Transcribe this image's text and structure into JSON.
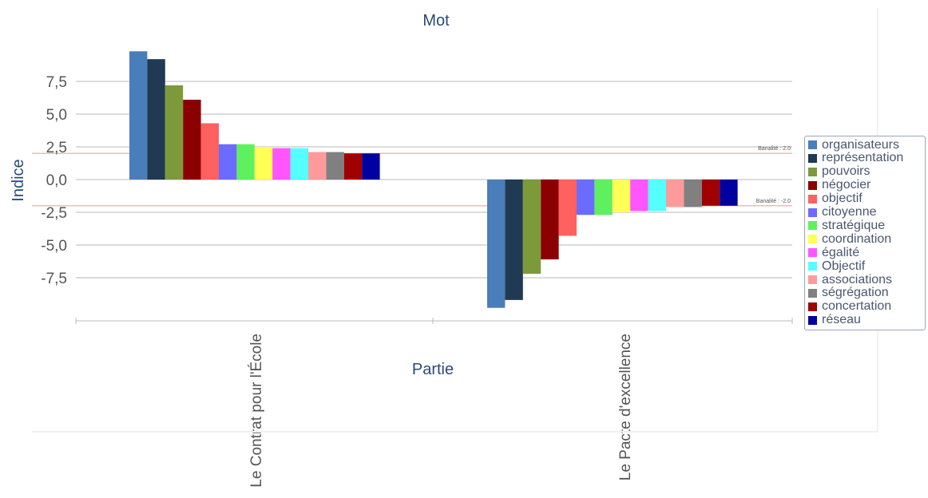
{
  "chart_data": {
    "type": "bar",
    "title": "Mot",
    "xlabel": "Partie",
    "ylabel": "Indice",
    "categories": [
      "Le Contrat pour l'École",
      "Le Pacte d'excellence"
    ],
    "ylim": [
      -10.4,
      10.4
    ],
    "yticks": [
      "7,5",
      "5,0",
      "2,5",
      "0,0",
      "-2,5",
      "-5,0",
      "-7,5"
    ],
    "ytick_values": [
      7.5,
      5.0,
      2.5,
      0.0,
      -2.5,
      -5.0,
      -7.5
    ],
    "grid": true,
    "legend_position": "right",
    "reference_lines": [
      {
        "label": "Banalité : 2.0",
        "value": 2.0
      },
      {
        "label": "Banalité : -2.0",
        "value": -2.0
      }
    ],
    "series": [
      {
        "name": "organisateurs",
        "color": "#4a7ebb",
        "values": [
          9.8,
          -9.8
        ]
      },
      {
        "name": "représentation",
        "color": "#1f3a52",
        "values": [
          9.2,
          -9.2
        ]
      },
      {
        "name": "pouvoirs",
        "color": "#7d9a3a",
        "values": [
          7.2,
          -7.2
        ]
      },
      {
        "name": "négocier",
        "color": "#8b0000",
        "values": [
          6.1,
          -6.1
        ]
      },
      {
        "name": "objectif",
        "color": "#ff6060",
        "values": [
          4.3,
          -4.3
        ]
      },
      {
        "name": "citoyenne",
        "color": "#6b6bff",
        "values": [
          2.7,
          -2.7
        ]
      },
      {
        "name": "stratégique",
        "color": "#5ef05e",
        "values": [
          2.7,
          -2.7
        ]
      },
      {
        "name": "coordination",
        "color": "#ffff55",
        "values": [
          2.5,
          -2.5
        ]
      },
      {
        "name": "égalité",
        "color": "#ff55ff",
        "values": [
          2.4,
          -2.4
        ]
      },
      {
        "name": "Objectif",
        "color": "#55ffff",
        "values": [
          2.4,
          -2.4
        ]
      },
      {
        "name": "associations",
        "color": "#ff9a9a",
        "values": [
          2.1,
          -2.1
        ]
      },
      {
        "name": "ségrégation",
        "color": "#808080",
        "values": [
          2.1,
          -2.1
        ]
      },
      {
        "name": "concertation",
        "color": "#a00000",
        "values": [
          2.0,
          -2.0
        ]
      },
      {
        "name": "réseau",
        "color": "#0000a0",
        "values": [
          2.0,
          -2.0
        ]
      }
    ]
  }
}
